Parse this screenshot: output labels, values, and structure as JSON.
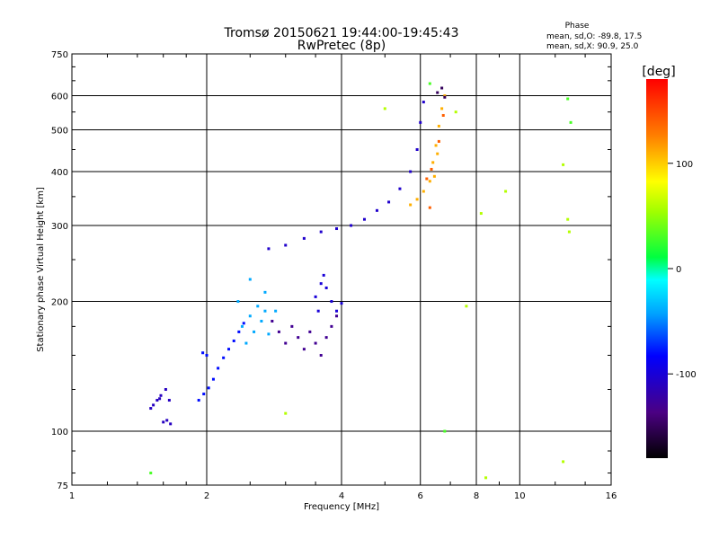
{
  "chart_data": {
    "type": "scatter",
    "title": "Tromsø 20150621 19:44:00-19:45:43",
    "subtitle": "RwPretec (8p)",
    "xlabel": "Frequency [MHz]",
    "ylabel": "Stationary phase Virtual Height [km]",
    "xscale": "log",
    "yscale": "log",
    "xlim": [
      1,
      16
    ],
    "ylim": [
      75,
      750
    ],
    "xticks": [
      1,
      2,
      4,
      6,
      8,
      10,
      16
    ],
    "xtick_labels": [
      "1",
      "2",
      "4",
      "6",
      "8",
      "10",
      "16"
    ],
    "yticks": [
      75,
      100,
      200,
      300,
      400,
      500,
      600,
      750
    ],
    "ytick_labels": [
      "75",
      "100",
      "200",
      "300",
      "400",
      "500",
      "600",
      "750"
    ],
    "grid": true,
    "phase_stats": {
      "heading": "Phase",
      "line_o": "mean, sd,O: -89.8, 17.5",
      "line_x": "mean, sd,X:  90.9, 25.0"
    },
    "colorbar": {
      "label": "[deg]",
      "min": -180,
      "max": 180,
      "ticks": [
        100,
        0,
        -100
      ],
      "tick_labels": [
        "100",
        "0",
        "-100"
      ]
    },
    "series": [
      {
        "name": "trace_low_cluster",
        "phase": -110,
        "points": [
          [
            1.52,
            115
          ],
          [
            1.55,
            118
          ],
          [
            1.58,
            121
          ],
          [
            1.62,
            125
          ],
          [
            1.65,
            118
          ],
          [
            1.6,
            105
          ],
          [
            1.63,
            106
          ],
          [
            1.66,
            104
          ],
          [
            1.5,
            113
          ],
          [
            1.57,
            119
          ]
        ]
      },
      {
        "name": "trace_E_rising",
        "phase": -80,
        "points": [
          [
            1.92,
            118
          ],
          [
            1.97,
            122
          ],
          [
            2.02,
            126
          ],
          [
            2.07,
            132
          ],
          [
            2.12,
            140
          ],
          [
            2.18,
            148
          ],
          [
            2.24,
            155
          ],
          [
            2.3,
            162
          ],
          [
            2.36,
            170
          ],
          [
            2.42,
            178
          ],
          [
            1.96,
            152
          ],
          [
            2.0,
            150
          ]
        ]
      },
      {
        "name": "trace_Es_cloud_cyan",
        "phase": -40,
        "points": [
          [
            2.4,
            175
          ],
          [
            2.5,
            185
          ],
          [
            2.6,
            195
          ],
          [
            2.7,
            210
          ],
          [
            2.55,
            170
          ],
          [
            2.65,
            180
          ],
          [
            2.75,
            168
          ],
          [
            2.45,
            160
          ],
          [
            2.85,
            190
          ],
          [
            2.35,
            200
          ],
          [
            2.5,
            225
          ],
          [
            2.7,
            190
          ]
        ]
      },
      {
        "name": "trace_Es_cloud_purple",
        "phase": -130,
        "points": [
          [
            2.8,
            180
          ],
          [
            2.9,
            170
          ],
          [
            3.0,
            160
          ],
          [
            3.1,
            175
          ],
          [
            3.2,
            165
          ],
          [
            3.3,
            155
          ],
          [
            3.4,
            170
          ],
          [
            3.5,
            160
          ],
          [
            3.6,
            150
          ],
          [
            3.7,
            165
          ],
          [
            3.8,
            175
          ],
          [
            3.9,
            185
          ]
        ]
      },
      {
        "name": "trace_F1_blue",
        "phase": -105,
        "points": [
          [
            2.75,
            265
          ],
          [
            3.0,
            270
          ],
          [
            3.3,
            280
          ],
          [
            3.6,
            290
          ],
          [
            3.9,
            295
          ],
          [
            4.2,
            300
          ],
          [
            4.5,
            310
          ],
          [
            4.8,
            325
          ],
          [
            5.1,
            340
          ],
          [
            5.4,
            365
          ],
          [
            5.7,
            400
          ],
          [
            5.9,
            450
          ],
          [
            6.0,
            520
          ],
          [
            6.1,
            580
          ]
        ]
      },
      {
        "name": "trace_F1_lower_blue",
        "phase": -100,
        "points": [
          [
            3.5,
            205
          ],
          [
            3.6,
            220
          ],
          [
            3.7,
            215
          ],
          [
            3.8,
            200
          ],
          [
            3.9,
            190
          ],
          [
            4.0,
            198
          ],
          [
            3.55,
            190
          ],
          [
            3.65,
            230
          ]
        ]
      },
      {
        "name": "trace_F2_X_yellow",
        "phase": 110,
        "points": [
          [
            5.7,
            335
          ],
          [
            5.9,
            345
          ],
          [
            6.1,
            360
          ],
          [
            6.3,
            380
          ],
          [
            6.4,
            420
          ],
          [
            6.5,
            460
          ],
          [
            6.6,
            510
          ],
          [
            6.7,
            560
          ],
          [
            6.8,
            600
          ],
          [
            6.45,
            390
          ],
          [
            6.55,
            440
          ]
        ]
      },
      {
        "name": "trace_F2_X_orange",
        "phase": 140,
        "points": [
          [
            6.2,
            385
          ],
          [
            6.35,
            405
          ],
          [
            6.6,
            470
          ],
          [
            6.75,
            540
          ],
          [
            6.3,
            330
          ]
        ]
      },
      {
        "name": "trace_F2_O_purple",
        "phase": -150,
        "points": [
          [
            6.55,
            610
          ],
          [
            6.7,
            625
          ],
          [
            6.8,
            595
          ]
        ]
      },
      {
        "name": "scattered_green",
        "phase": 30,
        "points": [
          [
            1.5,
            80
          ],
          [
            6.8,
            100
          ],
          [
            6.3,
            640
          ],
          [
            12.8,
            590
          ],
          [
            13.0,
            520
          ]
        ]
      },
      {
        "name": "scattered_misc",
        "phase": 60,
        "points": [
          [
            7.2,
            550
          ],
          [
            7.6,
            195
          ],
          [
            8.2,
            320
          ],
          [
            8.4,
            78
          ],
          [
            12.5,
            415
          ],
          [
            12.8,
            310
          ],
          [
            12.9,
            290
          ],
          [
            3.0,
            110
          ],
          [
            5.0,
            560
          ],
          [
            9.3,
            360
          ],
          [
            12.5,
            85
          ]
        ]
      }
    ]
  }
}
